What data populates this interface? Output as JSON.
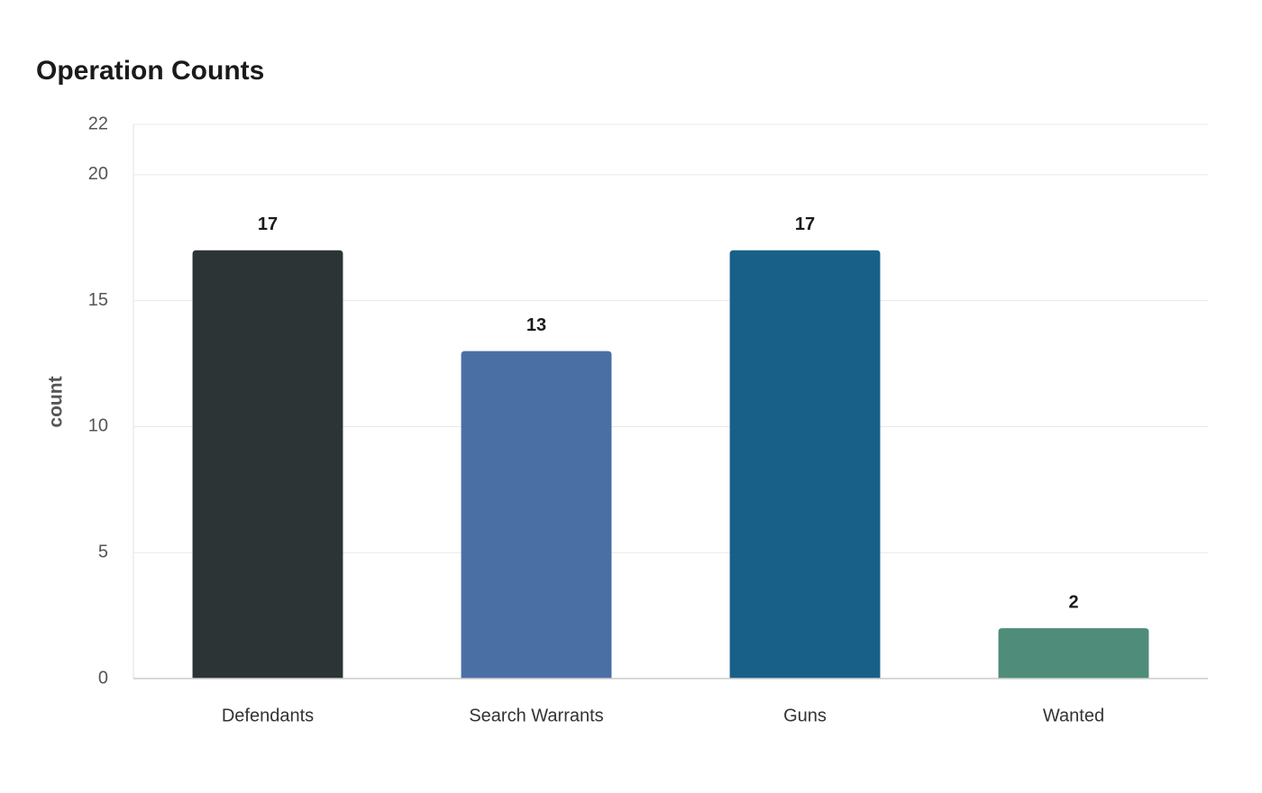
{
  "chart_data": {
    "type": "bar",
    "title": "Operation Counts",
    "y_label": "count",
    "categories": [
      "Defendants",
      "Search Warrants",
      "Guns",
      "Wanted"
    ],
    "values": [
      17,
      13,
      17,
      2
    ],
    "colors": [
      "#2d3436",
      "#4a6fa5",
      "#186088",
      "#4f8c7a"
    ],
    "ylim": [
      0,
      22
    ],
    "yticks": [
      0,
      5,
      10,
      15,
      20,
      22
    ],
    "grid": true
  }
}
